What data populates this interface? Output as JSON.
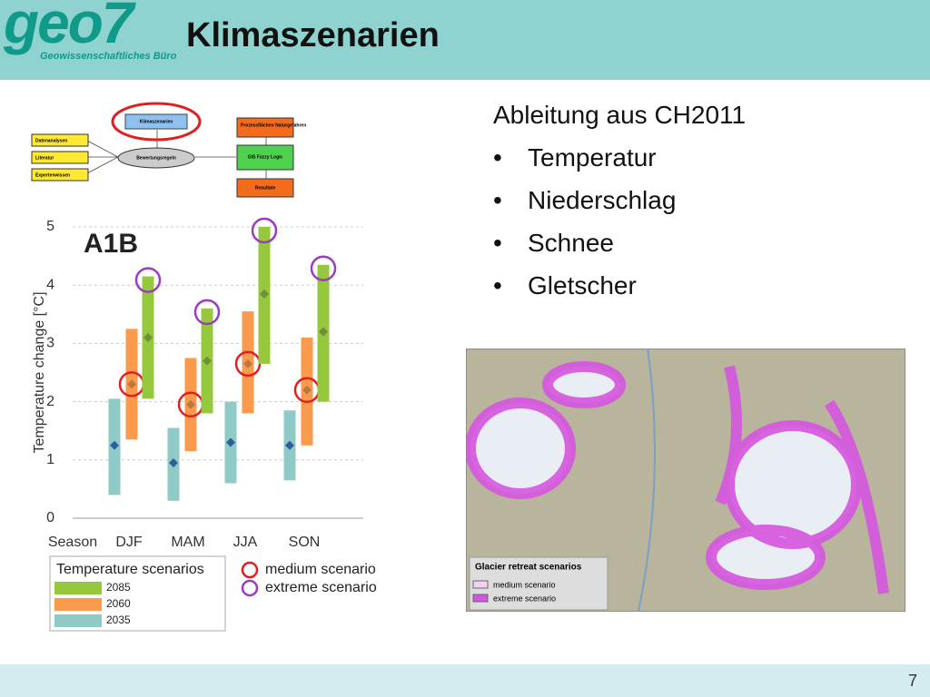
{
  "header": {
    "logo": "geo7",
    "logo_subtitle": "Geowissenschaftliches Büro",
    "title": "Klimaszenarien"
  },
  "bullets": {
    "heading": "Ableitung aus CH2011",
    "items": [
      "Temperatur",
      "Niederschlag",
      "Schnee",
      "Gletscher"
    ]
  },
  "diagram": {
    "nodes": [
      "Klimaszenarien",
      "Datenanalysen",
      "Literatur",
      "Expertenwissen",
      "Bewertungsregeln",
      "Prozessflächen Naturgefahren",
      "GIS Fuzzy Logic",
      "Resultate"
    ]
  },
  "chart_data": {
    "type": "range",
    "annotation": "A1B",
    "x_label": "Season",
    "y_label": "Temperature change [°C]",
    "categories": [
      "DJF",
      "MAM",
      "JJA",
      "SON"
    ],
    "ylim": [
      0,
      5
    ],
    "yticks": [
      0,
      1,
      2,
      3,
      4,
      5
    ],
    "grid": true,
    "legend_title": "Temperature scenarios",
    "series": [
      {
        "name": "2035",
        "color": "#8fcac6",
        "low": [
          0.4,
          0.3,
          0.6,
          0.65
        ],
        "high": [
          2.05,
          1.55,
          2.0,
          1.85
        ],
        "median": [
          1.25,
          0.95,
          1.3,
          1.25
        ],
        "marker_color": "#2f5f9a"
      },
      {
        "name": "2060",
        "color": "#f99a4c",
        "low": [
          1.35,
          1.15,
          1.8,
          1.25
        ],
        "high": [
          3.25,
          2.75,
          3.55,
          3.1
        ],
        "median": [
          2.3,
          1.95,
          2.65,
          2.2
        ],
        "marker_color": "#c0763f"
      },
      {
        "name": "2085",
        "color": "#96c83d",
        "low": [
          2.05,
          1.8,
          2.65,
          2.0
        ],
        "high": [
          4.15,
          3.6,
          5.0,
          4.35
        ],
        "median": [
          3.1,
          2.7,
          3.85,
          3.2
        ],
        "marker_color": "#6f8f3a"
      }
    ],
    "markers": [
      {
        "name": "medium scenario",
        "color": "#e02020"
      },
      {
        "name": "extreme scenario",
        "color": "#9b3cc0"
      }
    ]
  },
  "map": {
    "legend_title": "Glacier retreat scenarios",
    "legend_items": [
      "medium scenario",
      "extreme scenario"
    ]
  },
  "footer": {
    "page": "7"
  }
}
